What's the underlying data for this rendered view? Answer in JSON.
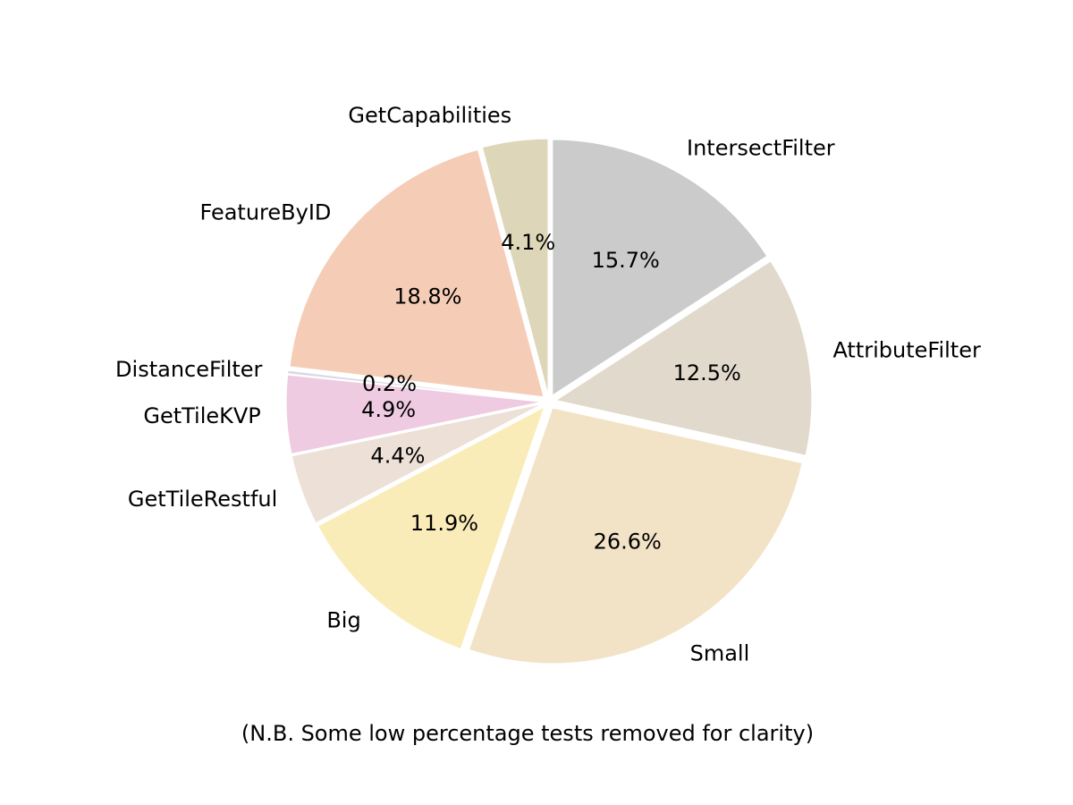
{
  "chart_data": {
    "type": "pie",
    "title": "",
    "start_angle_deg": 90,
    "direction": "clockwise",
    "slices": [
      {
        "label": "IntersectFilter",
        "value": 15.7,
        "pct_text": "15.7%",
        "color": "#cbcbcb"
      },
      {
        "label": "AttributeFilter",
        "value": 12.5,
        "pct_text": "12.5%",
        "color": "#e1d9cc"
      },
      {
        "label": "Small",
        "value": 26.6,
        "pct_text": "26.6%",
        "color": "#f2e3c7"
      },
      {
        "label": "Big",
        "value": 11.9,
        "pct_text": "11.9%",
        "color": "#faecb8"
      },
      {
        "label": "GetTileRestful",
        "value": 4.4,
        "pct_text": "4.4%",
        "color": "#ede0d7"
      },
      {
        "label": "GetTileKVP",
        "value": 4.9,
        "pct_text": "4.9%",
        "color": "#efcbe1"
      },
      {
        "label": "DistanceFilter",
        "value": 0.2,
        "pct_text": "0.2%",
        "color": "#d7d9e3"
      },
      {
        "label": "FeatureByID",
        "value": 18.8,
        "pct_text": "18.8%",
        "color": "#f5cdb6"
      },
      {
        "label": "GetCapabilities",
        "value": 4.1,
        "pct_text": "4.1%",
        "color": "#ded6b9"
      }
    ]
  },
  "footnote": "(N.B. Some low percentage tests removed for clarity)"
}
